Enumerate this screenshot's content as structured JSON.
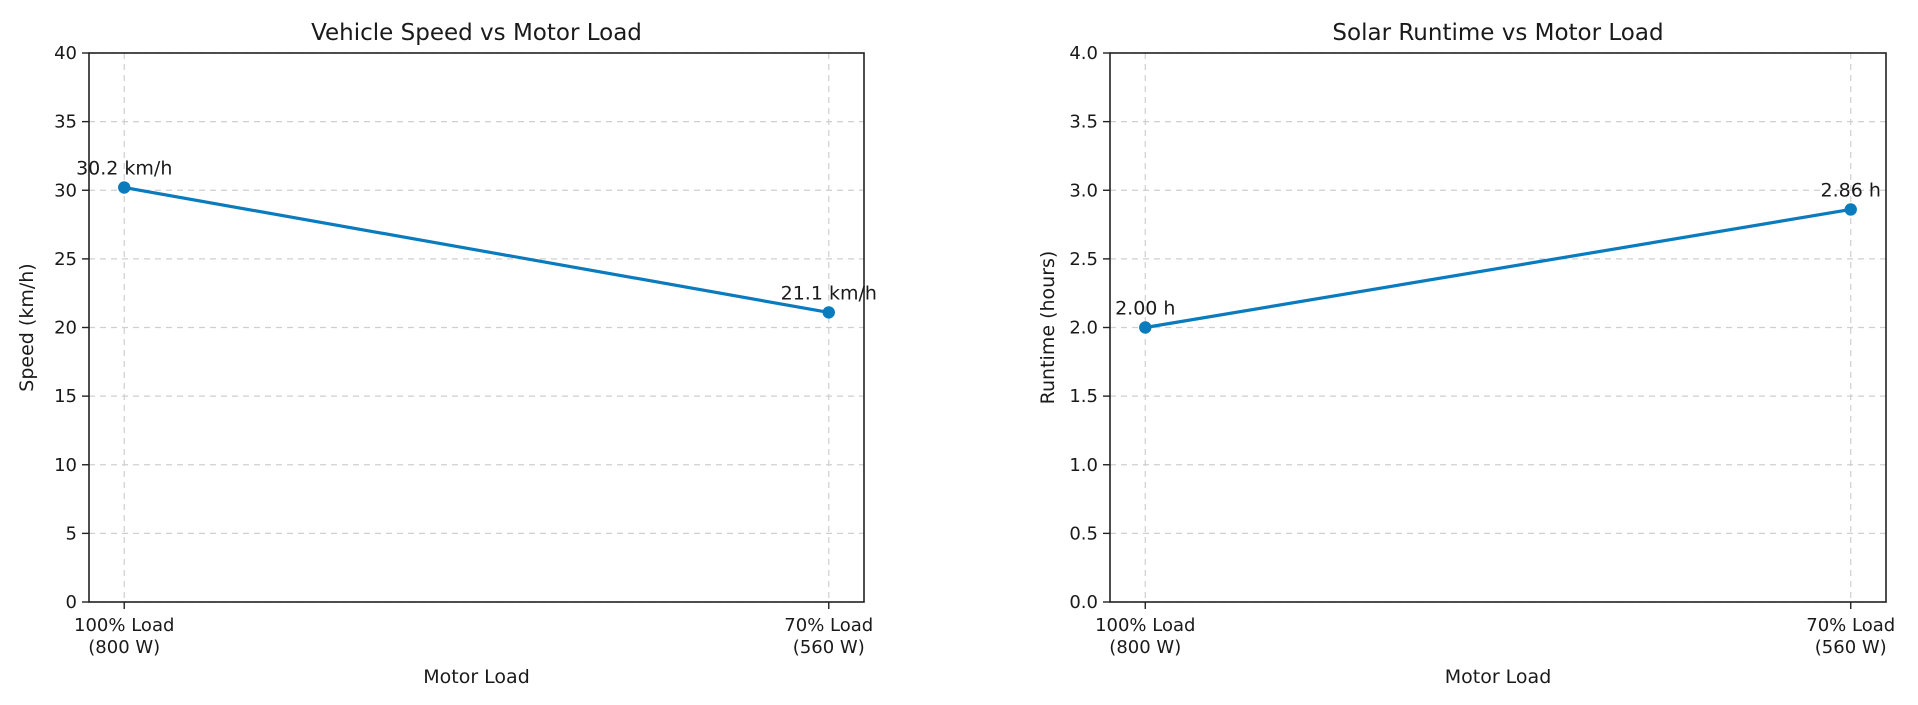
{
  "chart_data": [
    {
      "type": "line",
      "title": "Vehicle Speed vs Motor Load",
      "xlabel": "Motor Load",
      "ylabel": "Speed (km/h)",
      "categories": [
        [
          "100% Load",
          "(800 W)"
        ],
        [
          "70% Load",
          "(560 W)"
        ]
      ],
      "ylim": [
        0,
        40
      ],
      "yticks": [
        "0",
        "5",
        "10",
        "15",
        "20",
        "25",
        "30",
        "35",
        "40"
      ],
      "grid": true,
      "series": [
        {
          "values": [
            30.2,
            21.1
          ],
          "labels": [
            "30.2 km/h",
            "21.1 km/h"
          ],
          "color": "#0a7bbd"
        }
      ]
    },
    {
      "type": "line",
      "title": "Solar Runtime vs Motor Load",
      "xlabel": "Motor Load",
      "ylabel": "Runtime (hours)",
      "categories": [
        [
          "100% Load",
          "(800 W)"
        ],
        [
          "70% Load",
          "(560 W)"
        ]
      ],
      "ylim": [
        0,
        4
      ],
      "yticks": [
        "0.0",
        "0.5",
        "1.0",
        "1.5",
        "2.0",
        "2.5",
        "3.0",
        "3.5",
        "4.0"
      ],
      "grid": true,
      "series": [
        {
          "values": [
            2.0,
            2.86
          ],
          "labels": [
            "2.00 h",
            "2.86 h"
          ],
          "color": "#0a7bbd"
        }
      ]
    }
  ]
}
